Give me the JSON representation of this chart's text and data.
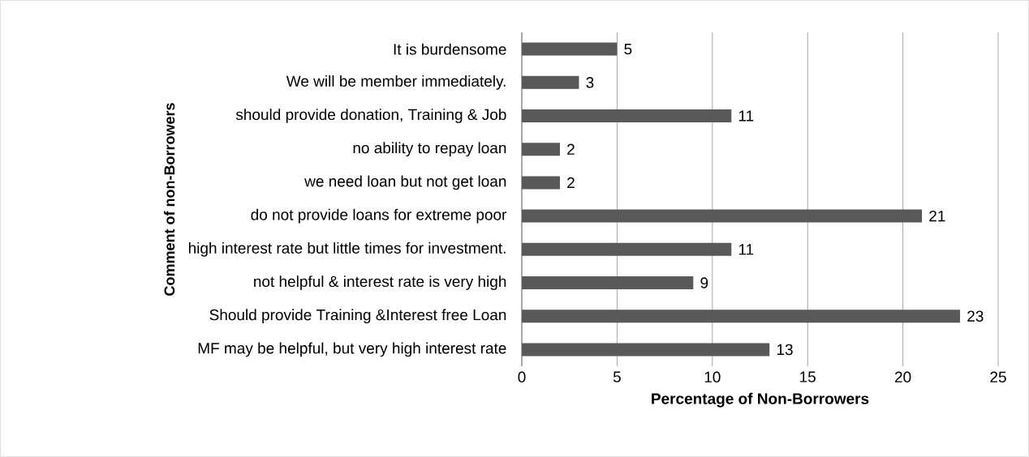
{
  "chart_data": {
    "type": "bar",
    "orientation": "horizontal",
    "xlabel": "Percentage of Non-Borrowers",
    "ylabel": "Comment of non-Borrowers",
    "categories": [
      "It is burdensome",
      "We will be member immediately.",
      "should provide donation, Training & Job",
      "no ability to repay loan",
      "we need loan but not get loan",
      "do not provide loans for extreme poor",
      "high interest rate but little times for investment.",
      "not helpful & interest rate is very high",
      "Should provide Training &Interest free Loan",
      "MF may be helpful, but very high interest rate"
    ],
    "values": [
      5,
      3,
      11,
      2,
      2,
      21,
      11,
      9,
      23,
      13
    ],
    "color": "#595959",
    "xlim": [
      0,
      25
    ],
    "xticks": [
      0,
      5,
      10,
      15,
      20,
      25
    ],
    "grid": "x",
    "data_labels": true
  }
}
